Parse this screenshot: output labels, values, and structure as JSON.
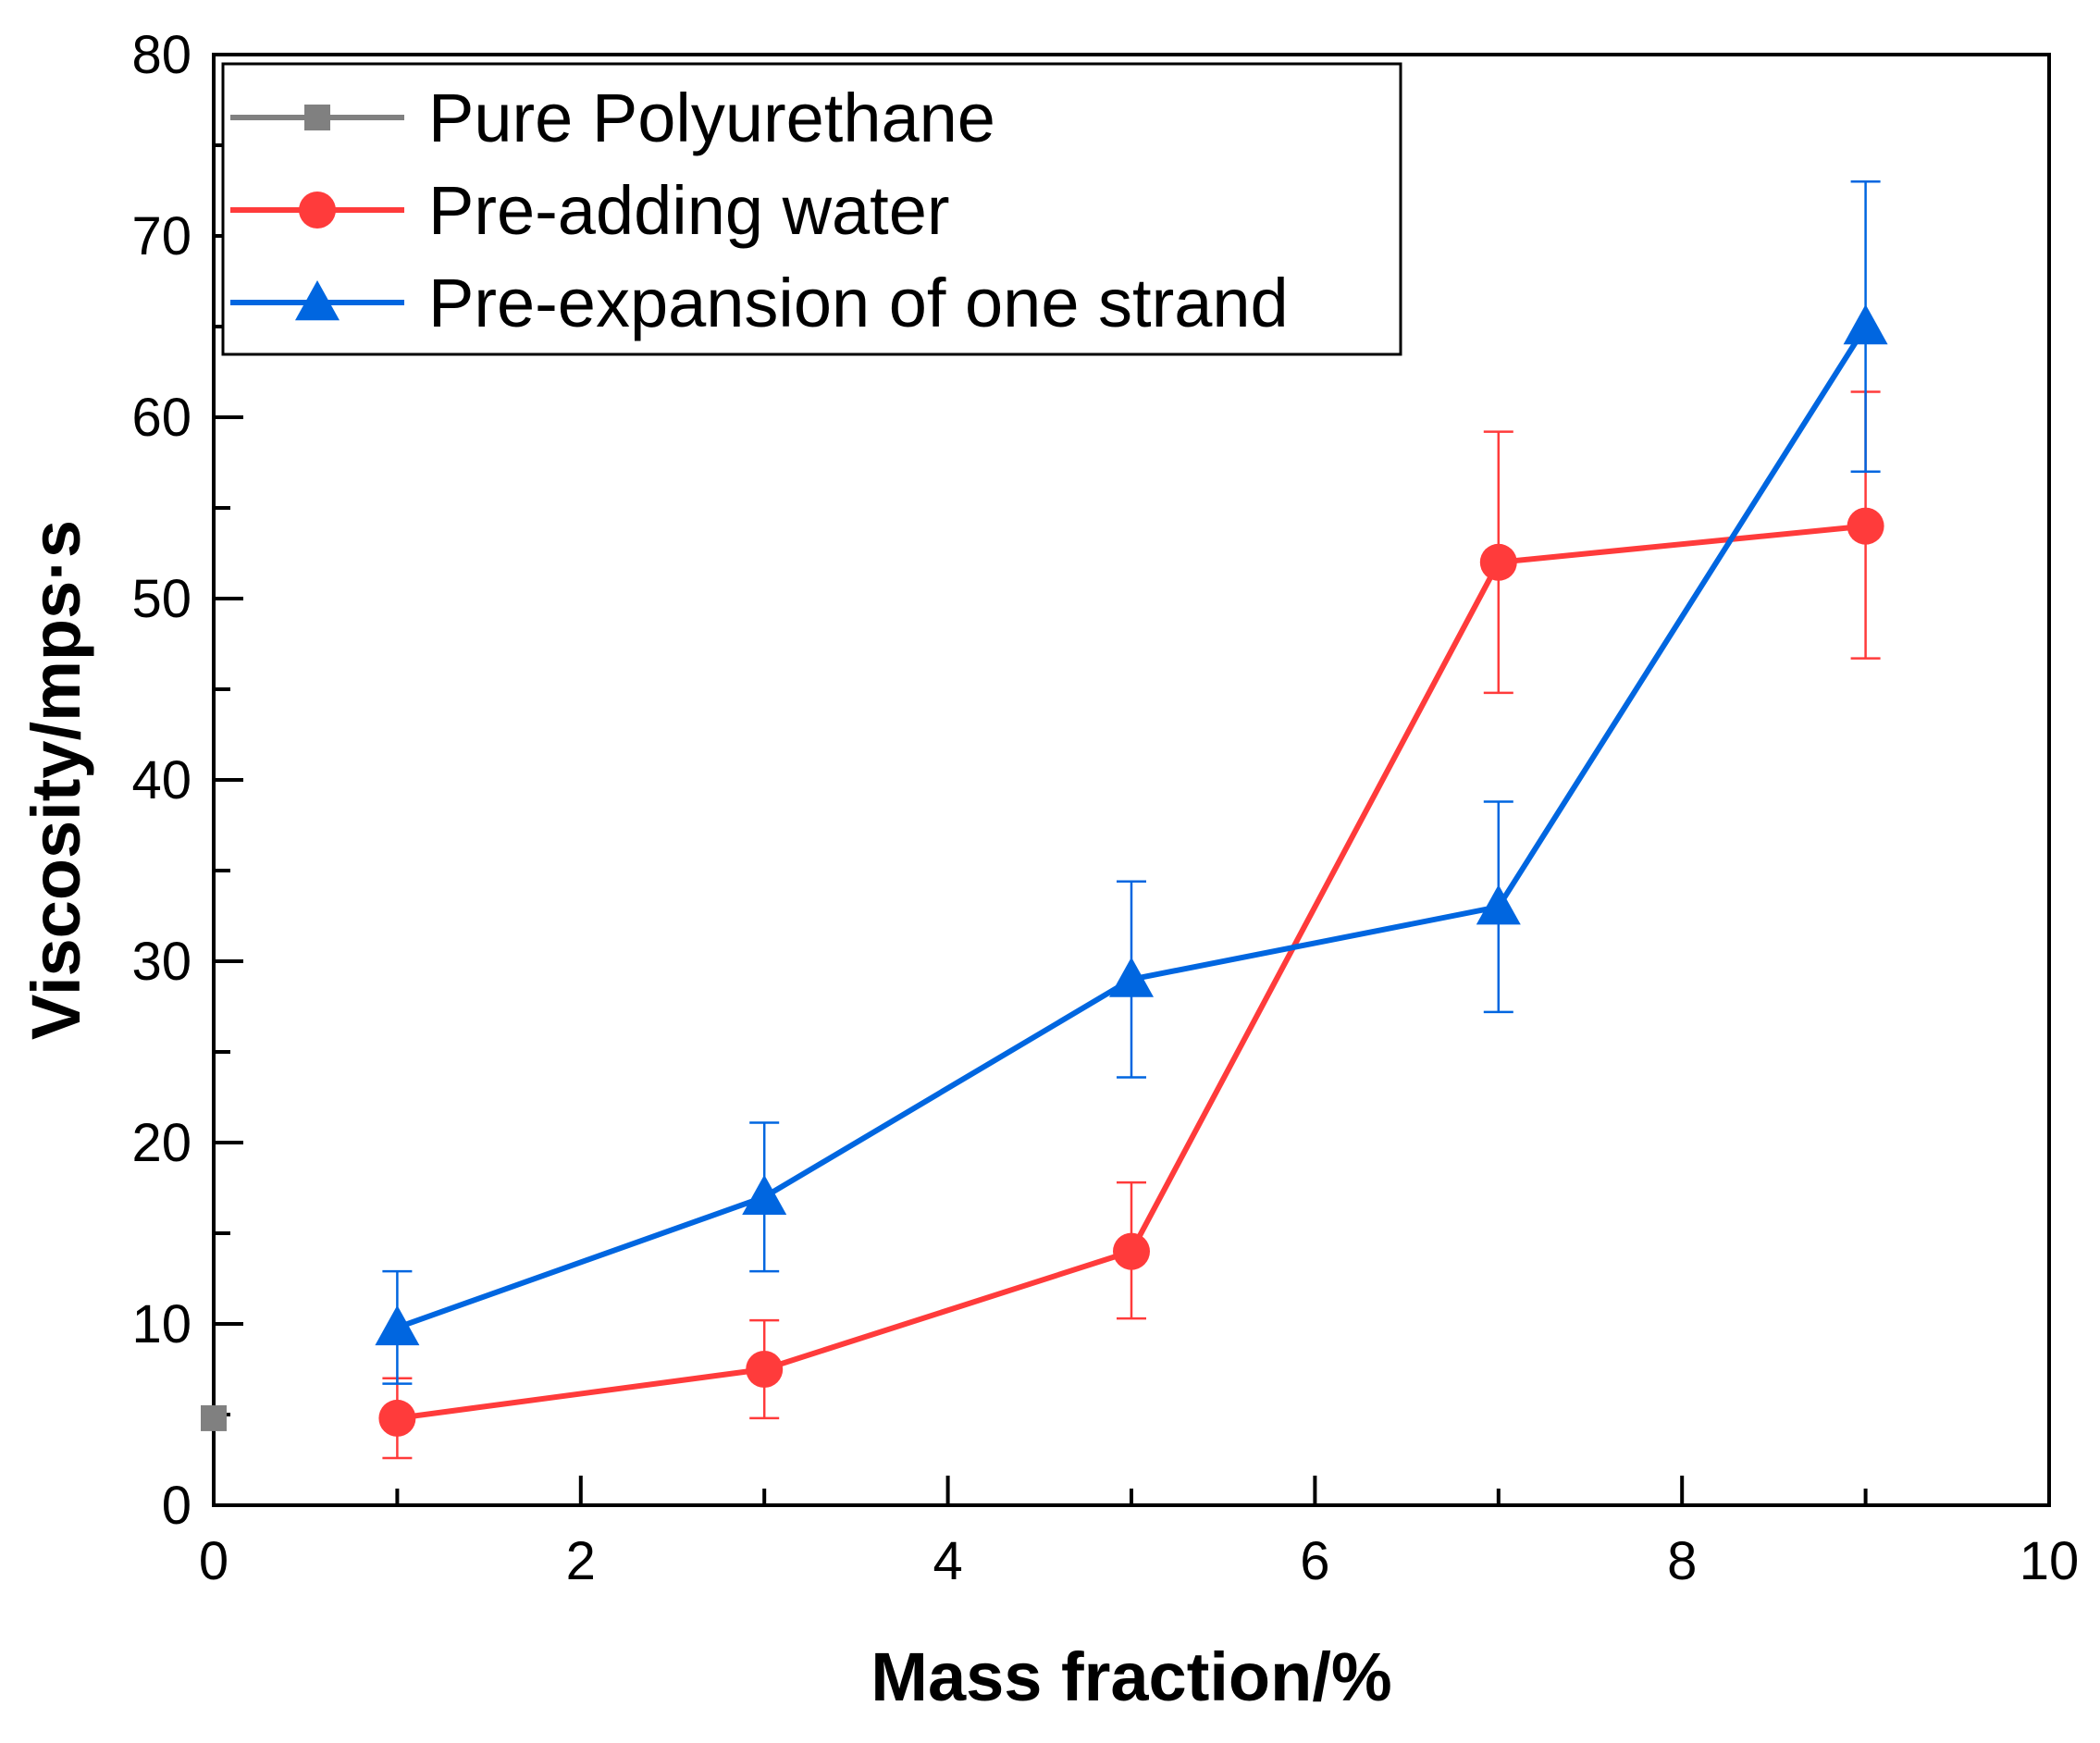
{
  "chart_data": {
    "type": "line",
    "title": "",
    "xlabel": "Mass fraction/%",
    "ylabel": "Viscosity/mps·s",
    "xlim": [
      0,
      10
    ],
    "ylim": [
      0,
      80
    ],
    "xticks": [
      0,
      2,
      4,
      6,
      8,
      10
    ],
    "yticks": [
      0,
      10,
      20,
      30,
      40,
      50,
      60,
      70,
      80
    ],
    "x_minor_step": 1,
    "y_minor_step": 5,
    "grid": false,
    "legend_position": "top-left",
    "series": [
      {
        "name": "Pure Polyurethane",
        "color": "#808080",
        "marker": "square",
        "x": [
          0
        ],
        "y": [
          4.8
        ],
        "err_plus": [
          0
        ],
        "err_minus": [
          0
        ]
      },
      {
        "name": "Pre-adding water",
        "color": "#ff3b3b",
        "marker": "circle",
        "x": [
          1,
          3,
          5,
          7,
          9
        ],
        "y": [
          4.8,
          7.5,
          14,
          52,
          54
        ],
        "err_plus": [
          2.2,
          2.7,
          3.8,
          7.2,
          7.4
        ],
        "err_minus": [
          2.2,
          2.7,
          3.7,
          7.2,
          7.3
        ]
      },
      {
        "name": "Pre-expansion of one strand",
        "color": "#0066e0",
        "marker": "triangle",
        "x": [
          1,
          3,
          5,
          7,
          9
        ],
        "y": [
          9.8,
          17,
          29,
          33,
          65
        ],
        "err_plus": [
          3.1,
          4.1,
          5.4,
          5.8,
          8
        ],
        "err_minus": [
          3.1,
          4.1,
          5.4,
          5.8,
          8
        ]
      }
    ]
  }
}
